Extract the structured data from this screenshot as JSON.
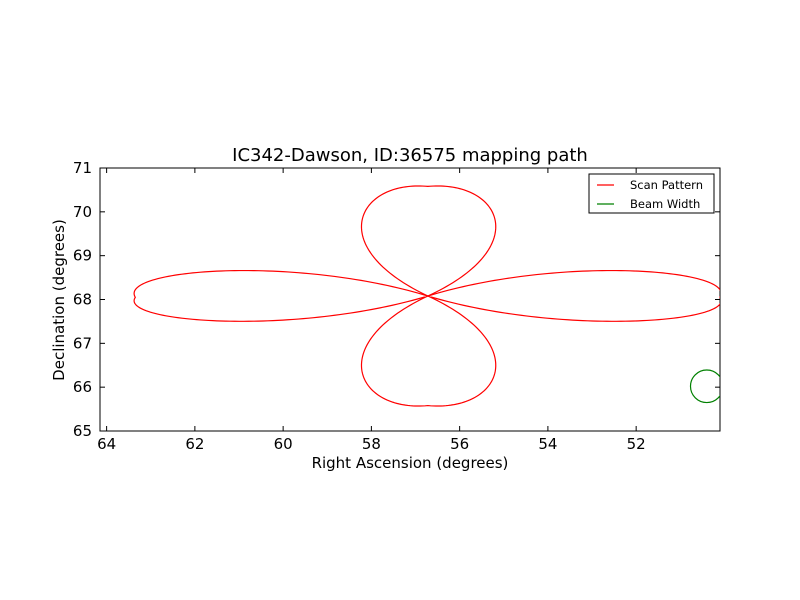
{
  "chart_data": {
    "type": "line",
    "title": "IC342-Dawson, ID:36575 mapping path",
    "xlabel": "Right Ascension (degrees)",
    "ylabel": "Declination (degrees)",
    "xlim": [
      64.15,
      50.1
    ],
    "ylim": [
      65,
      71
    ],
    "xticks": [
      64,
      62,
      60,
      58,
      56,
      54,
      52
    ],
    "yticks": [
      65,
      66,
      67,
      68,
      69,
      70,
      71
    ],
    "x_inverted": true,
    "grid": false,
    "legend_position": "top-right",
    "series": [
      {
        "name": "Scan Pattern",
        "color": "#ff0000",
        "kind": "rose-4-petal",
        "center": [
          56.72,
          68.08
        ],
        "petals": [
          {
            "direction": "left",
            "tip": [
              63.35,
              68.05
            ],
            "top": 68.77,
            "bottom": 67.4
          },
          {
            "direction": "right",
            "tip": [
              50.1,
              68.05
            ],
            "top": 68.77,
            "bottom": 67.4
          },
          {
            "direction": "up",
            "tip": [
              56.72,
              70.58
            ],
            "left": 58.5,
            "right": 54.9
          },
          {
            "direction": "down",
            "tip": [
              56.72,
              65.58
            ],
            "left": 58.5,
            "right": 54.9
          }
        ]
      },
      {
        "name": "Beam Width",
        "color": "#008000",
        "kind": "circle",
        "center": [
          50.4,
          66.02
        ],
        "radius_deg": 0.37
      }
    ]
  }
}
